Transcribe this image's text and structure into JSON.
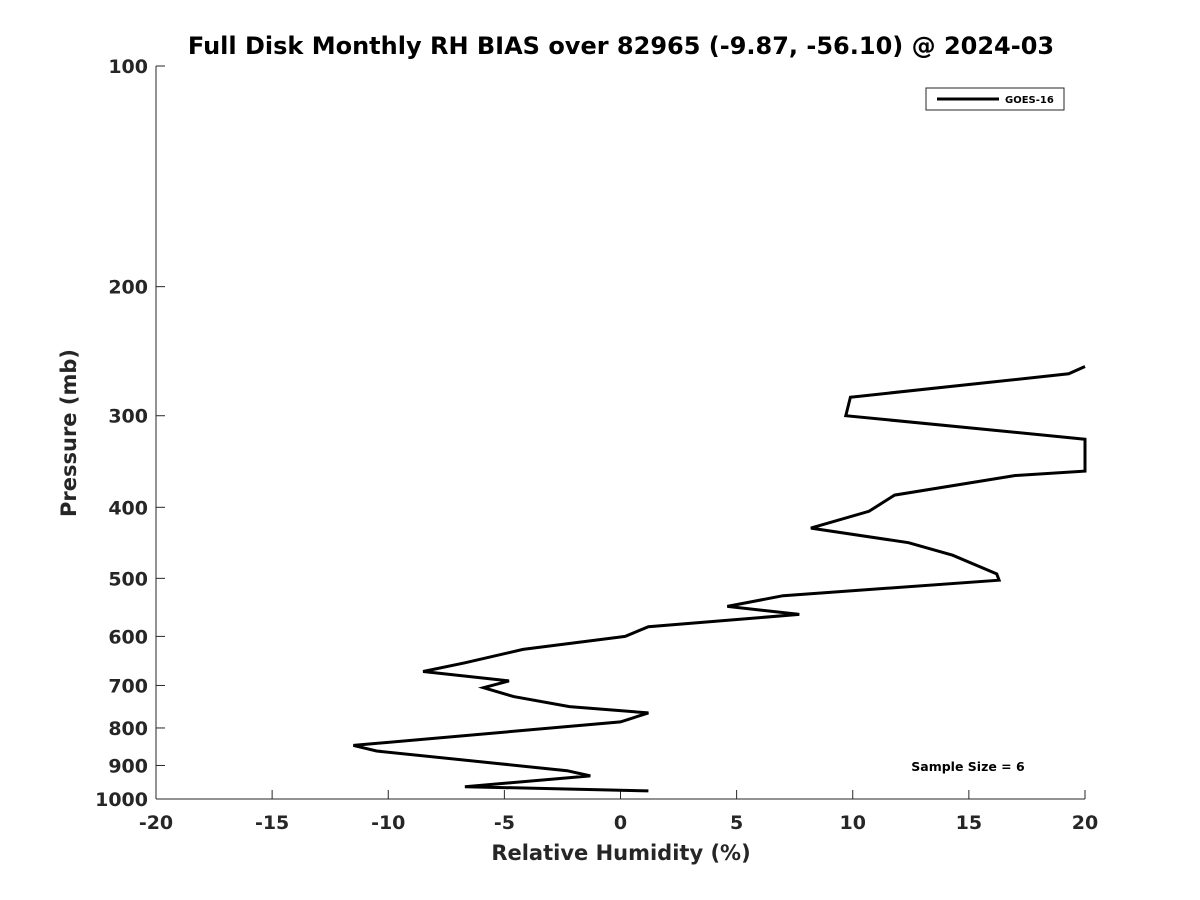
{
  "chart_data": {
    "type": "line",
    "title": "Full Disk Monthly RH BIAS over 82965 (-9.87, -56.10) @ 2024-03",
    "xlabel": "Relative Humidity (%)",
    "ylabel": "Pressure (mb)",
    "xlim": [
      -20,
      20
    ],
    "ylim": [
      100,
      1000
    ],
    "yscale": "log",
    "y_reversed": true,
    "grid": false,
    "legend_position": "top-right",
    "x_ticks": [
      -20,
      -15,
      -10,
      -5,
      0,
      5,
      10,
      15,
      20
    ],
    "x_tick_labels": [
      "-20",
      "-15",
      "-10",
      "-5",
      "0",
      "5",
      "10",
      "15",
      "20"
    ],
    "y_ticks": [
      100,
      200,
      300,
      400,
      500,
      600,
      700,
      800,
      900,
      1000
    ],
    "y_tick_labels": [
      "100",
      "200",
      "300",
      "400",
      "500",
      "600",
      "700",
      "800",
      "900",
      "1000"
    ],
    "series": [
      {
        "name": "GOES-16",
        "color": "#000000",
        "x": [
          1.2,
          -6.7,
          -1.3,
          -2.3,
          -10.5,
          -11.5,
          0.0,
          1.2,
          -2.2,
          -4.6,
          -5.9,
          -4.8,
          -8.5,
          -6.7,
          -4.2,
          0.2,
          1.2,
          7.7,
          4.6,
          7.0,
          16.3,
          16.2,
          14.3,
          12.4,
          8.2,
          10.7,
          11.8,
          17.0,
          20.0,
          20.0,
          9.7,
          9.9,
          19.3,
          20.0
        ],
        "y": [
          975,
          962,
          930,
          915,
          860,
          845,
          785,
          763,
          748,
          725,
          705,
          690,
          670,
          652,
          625,
          600,
          582,
          560,
          546,
          528,
          503,
          493,
          465,
          447,
          427,
          405,
          385,
          362,
          357,
          323,
          300,
          283,
          263,
          257
        ]
      }
    ],
    "annotation": "Sample Size = 6"
  }
}
